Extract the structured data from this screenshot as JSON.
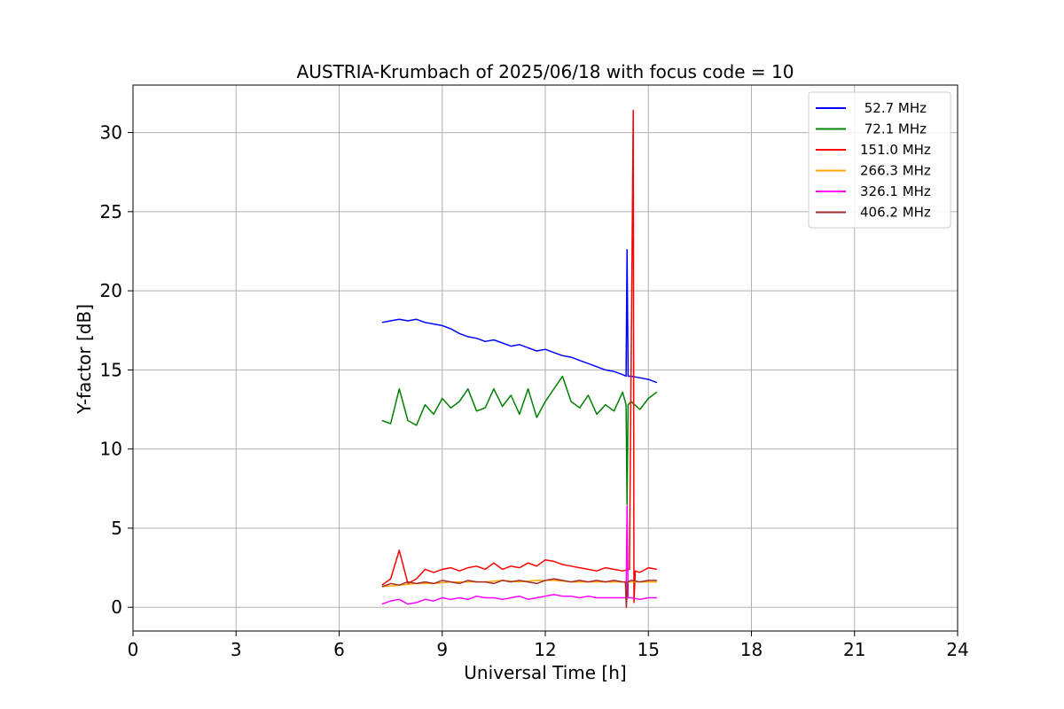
{
  "chart_data": {
    "type": "line",
    "title": "AUSTRIA-Krumbach of 2025/06/18 with focus code = 10",
    "xlabel": "Universal Time [h]",
    "ylabel": "Y-factor [dB]",
    "xlim": [
      0,
      24
    ],
    "ylim": [
      -1.5,
      33
    ],
    "xticks": [
      0,
      3,
      6,
      9,
      12,
      15,
      18,
      21,
      24
    ],
    "yticks": [
      0,
      5,
      10,
      15,
      20,
      25,
      30
    ],
    "grid": true,
    "legend_position": "top-right",
    "series": [
      {
        "name": " 52.7 MHz",
        "color": "#0000ff",
        "x": [
          7.25,
          7.5,
          7.75,
          8.0,
          8.25,
          8.5,
          8.75,
          9.0,
          9.25,
          9.5,
          9.75,
          10.0,
          10.25,
          10.5,
          10.75,
          11.0,
          11.25,
          11.5,
          11.75,
          12.0,
          12.25,
          12.5,
          12.75,
          13.0,
          13.25,
          13.5,
          13.75,
          14.0,
          14.25,
          14.35,
          14.38,
          14.41,
          14.5,
          14.75,
          15.0,
          15.25
        ],
        "y": [
          18.0,
          18.1,
          18.2,
          18.1,
          18.2,
          18.0,
          17.9,
          17.8,
          17.6,
          17.3,
          17.1,
          17.0,
          16.8,
          16.9,
          16.7,
          16.5,
          16.6,
          16.4,
          16.2,
          16.3,
          16.1,
          15.9,
          15.8,
          15.6,
          15.4,
          15.2,
          15.0,
          14.9,
          14.7,
          14.6,
          22.6,
          14.6,
          14.6,
          14.5,
          14.4,
          14.2
        ]
      },
      {
        "name": " 72.1 MHz",
        "color": "#008000",
        "x": [
          7.25,
          7.5,
          7.75,
          8.0,
          8.25,
          8.5,
          8.75,
          9.0,
          9.25,
          9.5,
          9.75,
          10.0,
          10.25,
          10.5,
          10.75,
          11.0,
          11.25,
          11.5,
          11.75,
          12.0,
          12.25,
          12.5,
          12.75,
          13.0,
          13.25,
          13.5,
          13.75,
          14.0,
          14.25,
          14.35,
          14.38,
          14.41,
          14.5,
          14.75,
          15.0,
          15.25
        ],
        "y": [
          11.8,
          11.6,
          13.8,
          11.8,
          11.5,
          12.8,
          12.2,
          13.2,
          12.6,
          13.0,
          13.8,
          12.4,
          12.6,
          13.8,
          12.7,
          13.4,
          12.2,
          13.8,
          12.0,
          13.0,
          13.8,
          14.6,
          13.0,
          12.6,
          13.4,
          12.2,
          12.8,
          12.4,
          13.6,
          12.8,
          6.5,
          12.8,
          13.0,
          12.5,
          13.2,
          13.6
        ]
      },
      {
        "name": "151.0 MHz",
        "color": "#ff0000",
        "x": [
          7.25,
          7.5,
          7.75,
          8.0,
          8.25,
          8.5,
          8.75,
          9.0,
          9.25,
          9.5,
          9.75,
          10.0,
          10.25,
          10.5,
          10.75,
          11.0,
          11.25,
          11.5,
          11.75,
          12.0,
          12.25,
          12.5,
          12.75,
          13.0,
          13.25,
          13.5,
          13.75,
          14.0,
          14.25,
          14.45,
          14.56,
          14.58,
          14.62,
          14.75,
          15.0,
          15.25
        ],
        "y": [
          1.4,
          1.8,
          3.6,
          1.5,
          1.8,
          2.4,
          2.2,
          2.4,
          2.5,
          2.3,
          2.5,
          2.6,
          2.4,
          2.8,
          2.4,
          2.6,
          2.5,
          2.8,
          2.6,
          3.0,
          2.9,
          2.7,
          2.6,
          2.5,
          2.4,
          2.3,
          2.5,
          2.4,
          2.3,
          2.4,
          31.4,
          0.3,
          2.3,
          2.2,
          2.5,
          2.4
        ]
      },
      {
        "name": "266.3 MHz",
        "color": "#ffa500",
        "x": [
          7.25,
          7.75,
          8.25,
          8.75,
          9.25,
          9.75,
          10.25,
          10.75,
          11.25,
          11.75,
          12.25,
          12.75,
          13.25,
          13.75,
          14.25,
          14.75,
          15.25
        ],
        "y": [
          1.3,
          1.4,
          1.5,
          1.5,
          1.6,
          1.6,
          1.6,
          1.7,
          1.6,
          1.7,
          1.7,
          1.6,
          1.6,
          1.6,
          1.6,
          1.6,
          1.6
        ]
      },
      {
        "name": "326.1 MHz",
        "color": "#ff00ff",
        "x": [
          7.25,
          7.5,
          7.75,
          8.0,
          8.25,
          8.5,
          8.75,
          9.0,
          9.25,
          9.5,
          9.75,
          10.0,
          10.25,
          10.5,
          10.75,
          11.0,
          11.25,
          11.5,
          11.75,
          12.0,
          12.25,
          12.5,
          12.75,
          13.0,
          13.25,
          13.5,
          13.75,
          14.0,
          14.25,
          14.35,
          14.38,
          14.41,
          14.5,
          14.75,
          15.0,
          15.25
        ],
        "y": [
          0.2,
          0.4,
          0.5,
          0.2,
          0.3,
          0.5,
          0.4,
          0.6,
          0.5,
          0.6,
          0.5,
          0.7,
          0.6,
          0.6,
          0.5,
          0.6,
          0.7,
          0.5,
          0.6,
          0.7,
          0.8,
          0.7,
          0.7,
          0.6,
          0.7,
          0.6,
          0.6,
          0.6,
          0.6,
          0.6,
          6.4,
          0.6,
          0.6,
          0.5,
          0.6,
          0.6
        ]
      },
      {
        "name": "406.2 MHz",
        "color": "#a52a2a",
        "x": [
          7.25,
          7.5,
          7.75,
          8.0,
          8.25,
          8.5,
          8.75,
          9.0,
          9.25,
          9.5,
          9.75,
          10.0,
          10.25,
          10.5,
          10.75,
          11.0,
          11.25,
          11.5,
          11.75,
          12.0,
          12.25,
          12.5,
          12.75,
          13.0,
          13.25,
          13.5,
          13.75,
          14.0,
          14.25,
          14.33,
          14.36,
          14.4,
          14.5,
          14.75,
          15.0,
          15.25
        ],
        "y": [
          1.3,
          1.5,
          1.4,
          1.6,
          1.5,
          1.6,
          1.5,
          1.7,
          1.6,
          1.5,
          1.7,
          1.6,
          1.6,
          1.5,
          1.7,
          1.6,
          1.7,
          1.6,
          1.5,
          1.7,
          1.8,
          1.7,
          1.6,
          1.7,
          1.6,
          1.7,
          1.6,
          1.7,
          1.6,
          1.6,
          0.0,
          1.6,
          1.7,
          1.6,
          1.7,
          1.7
        ]
      }
    ]
  }
}
